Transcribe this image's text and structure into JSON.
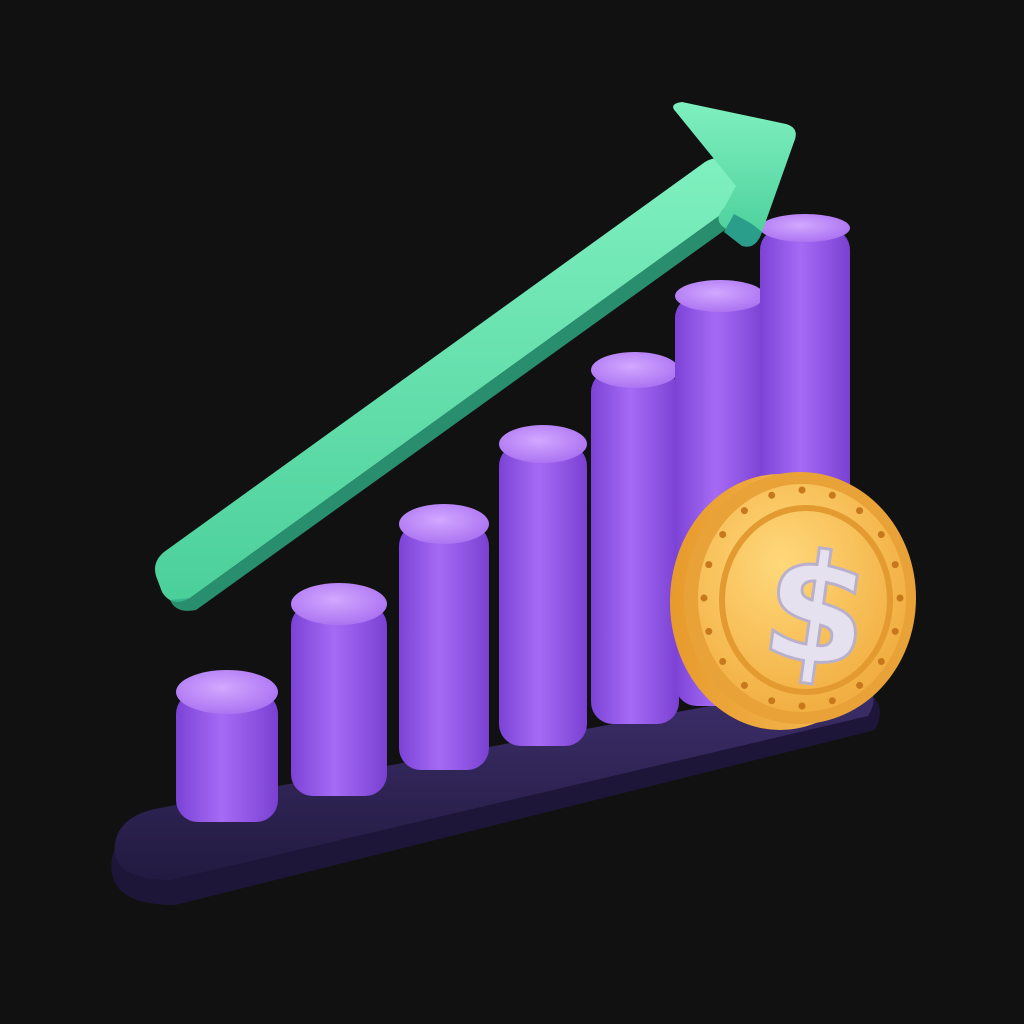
{
  "scene": {
    "background": "#111111",
    "subject": "growth-bar-chart-illustration",
    "colors": {
      "bar": "#9a5cf0",
      "bar_light": "#c49bff",
      "bar_dark": "#6d35c4",
      "base": "#36295e",
      "base_dark": "#231a42",
      "arrow": "#5fe0a8",
      "arrow_dark": "#2aa985",
      "coin": "#f5bd52",
      "coin_dark": "#d98f24",
      "coin_symbol": "#e6e1ef"
    },
    "coin_symbol": "$",
    "bar_count": 7
  }
}
